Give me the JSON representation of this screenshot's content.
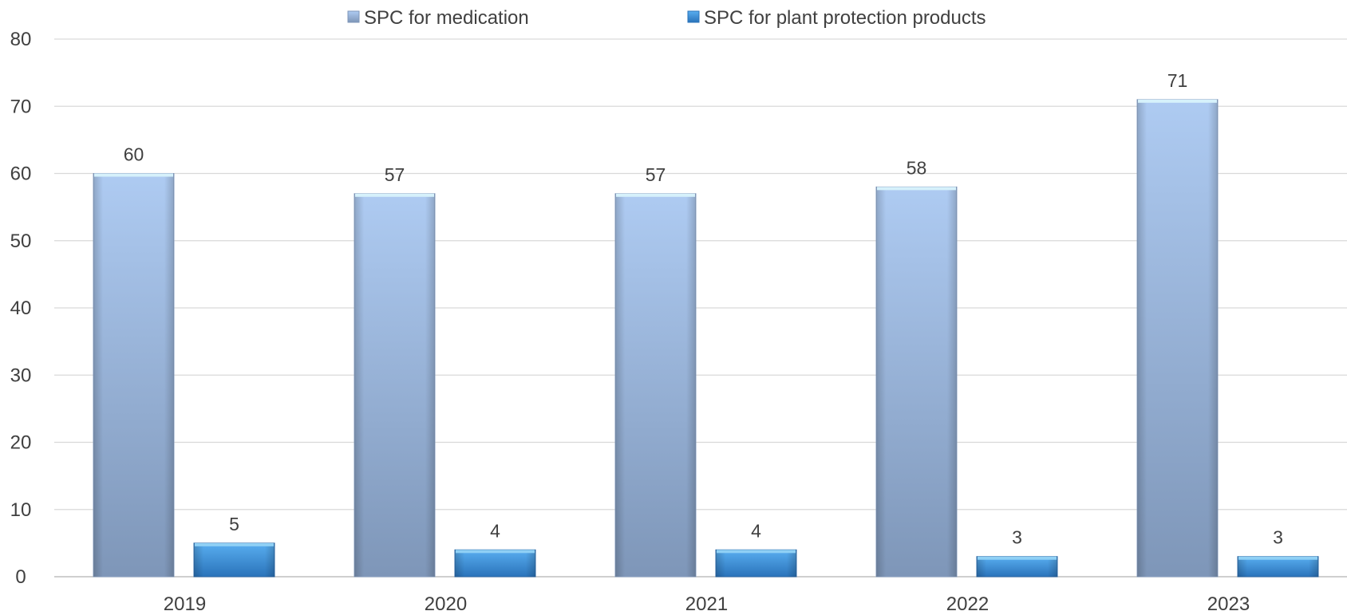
{
  "chart_data": {
    "type": "bar",
    "categories": [
      "2019",
      "2020",
      "2021",
      "2022",
      "2023"
    ],
    "series": [
      {
        "name": "SPC for medication",
        "values": [
          60,
          57,
          57,
          58,
          71
        ],
        "color": "#9bb8e6"
      },
      {
        "name": "SPC for plant protection products",
        "values": [
          5,
          4,
          4,
          3,
          3
        ],
        "color": "#3b8fd6"
      }
    ],
    "title": "",
    "xlabel": "",
    "ylabel": "",
    "ylim": [
      0,
      80
    ],
    "yticks": [
      "0",
      "10",
      "20",
      "30",
      "40",
      "50",
      "60",
      "70",
      "80"
    ],
    "grid": true,
    "legend_position": "top-center",
    "data_labels": true
  }
}
